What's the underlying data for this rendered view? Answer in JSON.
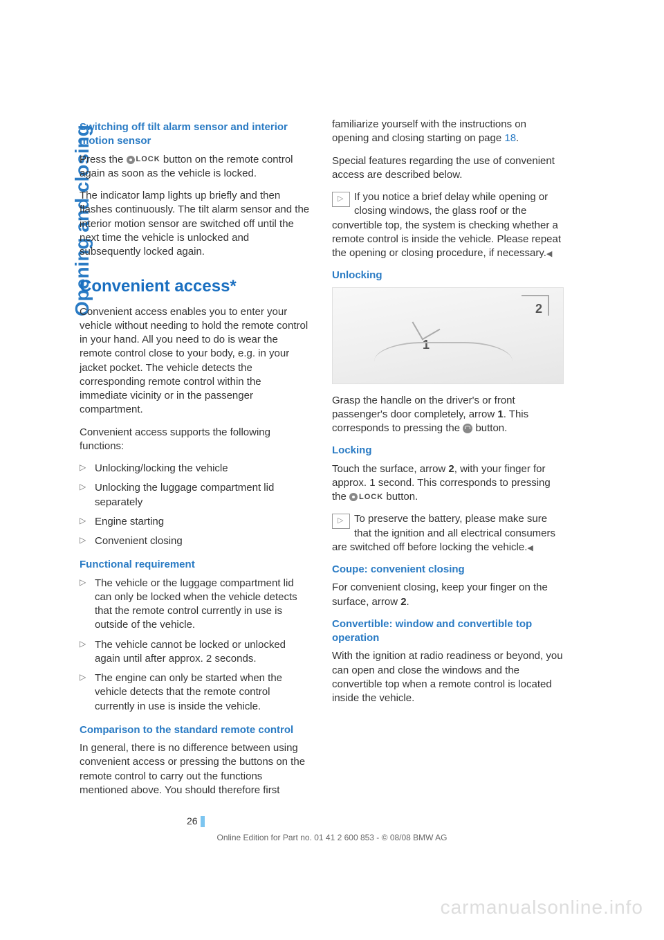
{
  "sidebar_title": "Opening and closing",
  "left": {
    "h3_1": "Switching off tilt alarm sensor and interior motion sensor",
    "p1a": "Press the ",
    "p1b": " button on the remote control again as soon as the vehicle is locked.",
    "p2": "The indicator lamp lights up briefly and then flashes continuously. The tilt alarm sensor and the interior motion sensor are switched off until the next time the vehicle is unlocked and subsequently locked again.",
    "h2_1": "Convenient access*",
    "p3": "Convenient access enables you to enter your vehicle without needing to hold the remote control in your hand. All you need to do is wear the remote control close to your body, e.g. in your jacket pocket. The vehicle detects the corresponding remote control within the immediate vicinity or in the passenger compartment.",
    "p4": "Convenient access supports the following functions:",
    "list1": [
      "Unlocking/locking the vehicle",
      "Unlocking the luggage compartment lid separately",
      "Engine starting",
      "Convenient closing"
    ],
    "h3_2": "Functional requirement",
    "list2": [
      "The vehicle or the luggage compartment lid can only be locked when the vehicle detects that the remote control currently in use is outside of the vehicle.",
      "The vehicle cannot be locked or unlocked again until after approx. 2 seconds.",
      "The engine can only be started when the vehicle detects that the remote control currently in use is inside the vehicle."
    ],
    "h3_3": "Comparison to the standard remote control",
    "p5": "In general, there is no difference between using convenient access or pressing the buttons on the remote control to carry out the functions mentioned above. You should therefore first"
  },
  "right": {
    "p1a": "familiarize yourself with the instructions on opening and closing starting on page ",
    "p1_link": "18",
    "p1b": ".",
    "p2": "Special features regarding the use of convenient access are described below.",
    "note1a": "If you notice a brief delay while opening or closing windows, the glass roof or the convertible top, the system is checking whether a remote control is inside the vehicle. Please repeat the opening or closing procedure, if necessary.",
    "h3_1": "Unlocking",
    "fig_label1": "1",
    "fig_label2": "2",
    "p3a": "Grasp the handle on the driver's or front passenger's door completely, arrow ",
    "p3b": ". This corresponds to pressing the ",
    "p3c": " button.",
    "h3_2": "Locking",
    "p4a": "Touch the surface, arrow ",
    "p4b": ", with your finger for approx. 1 second. This corresponds to pressing the ",
    "p4c": " button.",
    "note2": "To preserve the battery, please make sure that the ignition and all electrical consumers are switched off before locking the vehicle.",
    "h3_3": "Coupe: convenient closing",
    "p5a": "For convenient closing, keep your finger on the surface, arrow ",
    "p5b": ".",
    "h3_4": "Convertible: window and convertible top operation",
    "p6": "With the ignition at radio readiness or beyond, you can open and close the windows and the convertible top when a remote control is located inside the vehicle."
  },
  "lock_label": "LOCK",
  "bold": {
    "one": "1",
    "two": "2"
  },
  "footer": {
    "page": "26",
    "line": "Online Edition for Part no. 01 41 2 600 853 - © 08/08 BMW AG"
  },
  "watermark": "carmanualsonline.info"
}
